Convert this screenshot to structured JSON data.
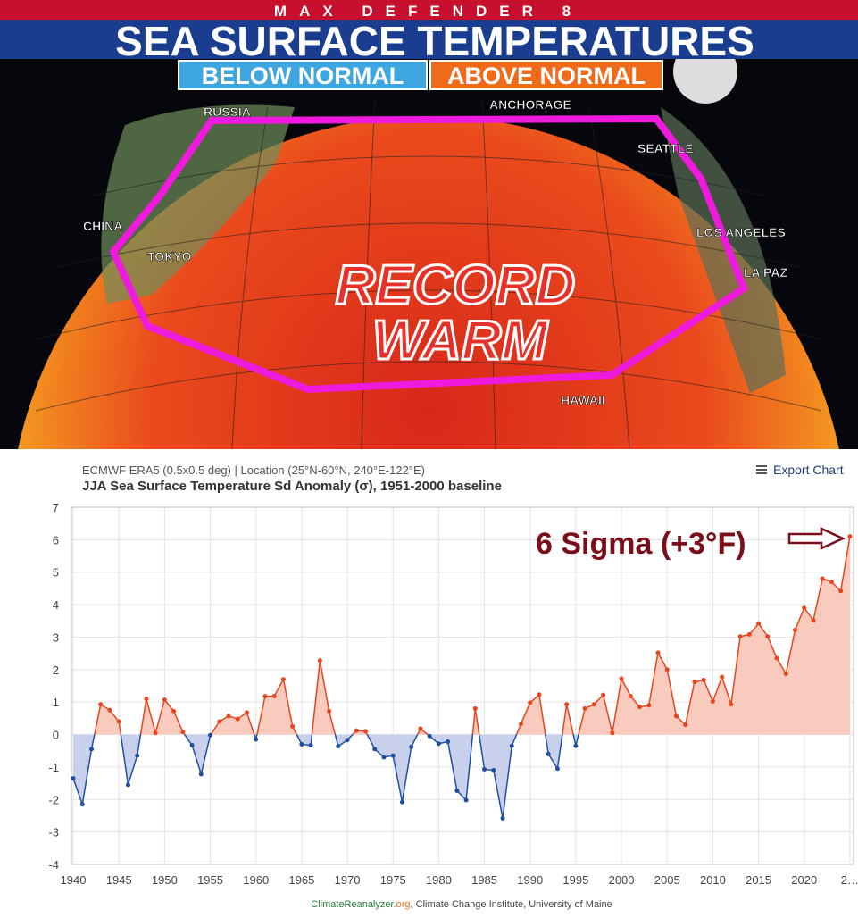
{
  "banner": {
    "station": "MAX DEFENDER 8",
    "title": "SEA SURFACE TEMPERATURES",
    "legend_below": "BELOW NORMAL",
    "legend_above": "ABOVE NORMAL",
    "places": [
      "RUSSIA",
      "ANCHORAGE",
      "SEATTLE",
      "CHINA",
      "TOKYO",
      "LOS ANGELES",
      "LA PAZ",
      "HAWAII"
    ],
    "callout": [
      "RECORD",
      "WARM"
    ]
  },
  "chart_data": {
    "type": "line",
    "subtitle": "ECMWF ERA5 (0.5x0.5 deg) | Location (25°N-60°N, 240°E-122°E)",
    "title": "JJA Sea Surface Temperature Sd Anomaly (σ), 1951-2000 baseline",
    "export": "Export Chart",
    "annotation": "6 Sigma (+3°F)",
    "credit": [
      "ClimateReanalyzer",
      ".org",
      ", Climate Change Institute, University of Maine"
    ],
    "x": [
      1940,
      1941,
      1942,
      1943,
      1944,
      1945,
      1946,
      1947,
      1948,
      1949,
      1950,
      1951,
      1952,
      1953,
      1954,
      1955,
      1956,
      1957,
      1958,
      1959,
      1960,
      1961,
      1962,
      1963,
      1964,
      1965,
      1966,
      1967,
      1968,
      1969,
      1970,
      1971,
      1972,
      1973,
      1974,
      1975,
      1976,
      1977,
      1978,
      1979,
      1980,
      1981,
      1982,
      1983,
      1984,
      1985,
      1986,
      1987,
      1988,
      1989,
      1990,
      1991,
      1992,
      1993,
      1994,
      1995,
      1996,
      1997,
      1998,
      1999,
      2000,
      2001,
      2002,
      2003,
      2004,
      2005,
      2006,
      2007,
      2008,
      2009,
      2010,
      2011,
      2012,
      2013,
      2014,
      2015,
      2016,
      2017,
      2018,
      2019,
      2020,
      2021,
      2022,
      2023,
      2024,
      2025
    ],
    "values": [
      -1.35,
      -2.15,
      -0.45,
      0.93,
      0.75,
      0.4,
      -1.55,
      -0.65,
      1.1,
      0.05,
      1.07,
      0.72,
      0.08,
      -0.33,
      -1.22,
      -0.02,
      0.4,
      0.57,
      0.48,
      0.68,
      -0.15,
      1.18,
      1.18,
      1.7,
      0.25,
      -0.3,
      -0.33,
      2.28,
      0.72,
      -0.36,
      -0.17,
      0.12,
      0.1,
      -0.45,
      -0.7,
      -0.65,
      -2.08,
      -0.38,
      0.18,
      -0.05,
      -0.28,
      -0.22,
      -1.73,
      -2.02,
      0.8,
      -1.07,
      -1.1,
      -2.58,
      -0.35,
      0.33,
      0.98,
      1.23,
      -0.6,
      -1.05,
      0.93,
      -0.35,
      0.8,
      0.93,
      1.22,
      0.05,
      1.72,
      1.18,
      0.85,
      0.9,
      2.52,
      2.0,
      0.57,
      0.3,
      1.62,
      1.68,
      1.02,
      1.77,
      0.93,
      3.02,
      3.08,
      3.42,
      3.02,
      2.35,
      1.87,
      3.22,
      3.9,
      3.52,
      4.8,
      4.7,
      4.42,
      6.1
    ],
    "color_above": "#e8451e",
    "color_below": "#1f4fa0",
    "fill_above": "#f9cbbf",
    "fill_below": "#c9d0ec",
    "xlim": [
      1939.8,
      2025.4
    ],
    "xticks": [
      1940,
      1945,
      1950,
      1955,
      1960,
      1965,
      1970,
      1975,
      1980,
      1985,
      1990,
      1995,
      2000,
      2005,
      2010,
      2015,
      2020,
      {
        "value": 2025,
        "label": "2…"
      }
    ],
    "ylim": [
      -4,
      7
    ],
    "yticks": [
      -4,
      -3,
      -2,
      -1,
      0,
      1,
      2,
      3,
      4,
      5,
      6,
      7
    ],
    "grid": true
  }
}
